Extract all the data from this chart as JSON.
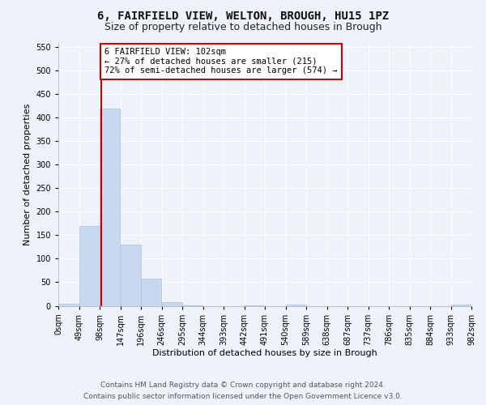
{
  "title1": "6, FAIRFIELD VIEW, WELTON, BROUGH, HU15 1PZ",
  "title2": "Size of property relative to detached houses in Brough",
  "xlabel": "Distribution of detached houses by size in Brough",
  "ylabel": "Number of detached properties",
  "bar_color": "#c8d8ee",
  "bar_edge_color": "#a8c0de",
  "bin_edges": [
    0,
    49,
    98,
    147,
    196,
    245,
    294,
    343,
    392,
    441,
    490,
    539,
    588,
    637,
    686,
    735,
    784,
    833,
    882,
    931,
    980
  ],
  "bin_labels": [
    "0sqm",
    "49sqm",
    "98sqm",
    "147sqm",
    "196sqm",
    "246sqm",
    "295sqm",
    "344sqm",
    "393sqm",
    "442sqm",
    "491sqm",
    "540sqm",
    "589sqm",
    "638sqm",
    "687sqm",
    "737sqm",
    "786sqm",
    "835sqm",
    "884sqm",
    "933sqm",
    "982sqm"
  ],
  "bar_heights": [
    5,
    170,
    420,
    130,
    57,
    7,
    1,
    0,
    0,
    1,
    0,
    3,
    0,
    0,
    0,
    0,
    0,
    0,
    0,
    2
  ],
  "property_size": 102,
  "red_line_color": "#cc0000",
  "annotation_text": "6 FAIRFIELD VIEW: 102sqm\n← 27% of detached houses are smaller (215)\n72% of semi-detached houses are larger (574) →",
  "annotation_box_color": "#ffffff",
  "annotation_box_edge": "#cc0000",
  "ylim": [
    0,
    560
  ],
  "yticks": [
    0,
    50,
    100,
    150,
    200,
    250,
    300,
    350,
    400,
    450,
    500,
    550
  ],
  "background_color": "#eef2fa",
  "grid_color": "#ffffff",
  "footer1": "Contains HM Land Registry data © Crown copyright and database right 2024.",
  "footer2": "Contains public sector information licensed under the Open Government Licence v3.0.",
  "title1_fontsize": 10,
  "title2_fontsize": 9,
  "axis_label_fontsize": 8,
  "tick_fontsize": 7,
  "annotation_fontsize": 7.5,
  "footer_fontsize": 6.5
}
